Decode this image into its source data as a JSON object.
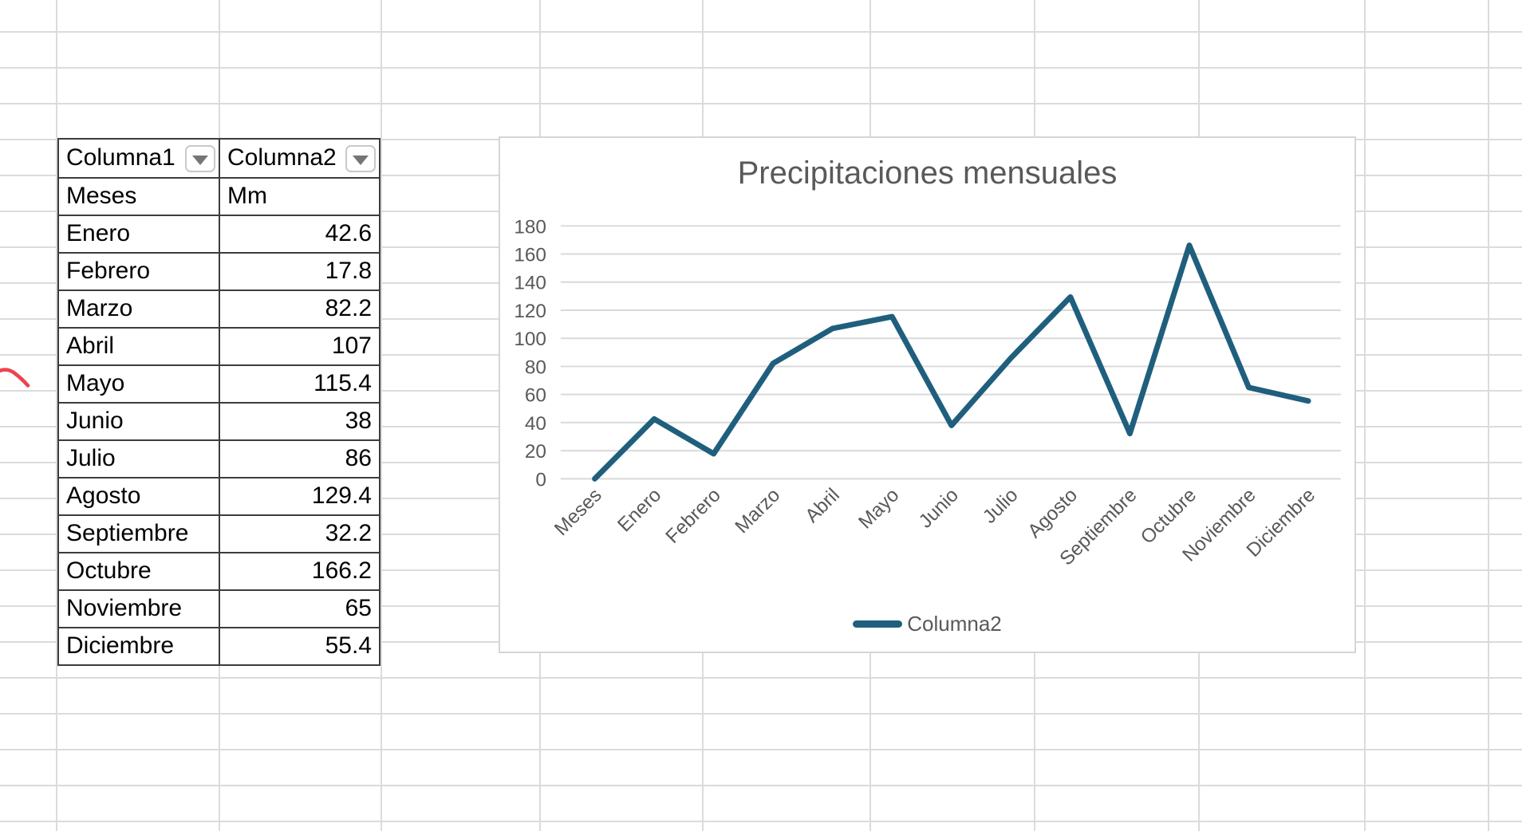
{
  "table": {
    "headers": [
      "Columna1",
      "Columna2"
    ],
    "subheader": [
      "Meses",
      "Mm"
    ],
    "rows": [
      {
        "month": "Enero",
        "value": "42.6"
      },
      {
        "month": "Febrero",
        "value": "17.8"
      },
      {
        "month": "Marzo",
        "value": "82.2"
      },
      {
        "month": "Abril",
        "value": "107"
      },
      {
        "month": "Mayo",
        "value": "115.4"
      },
      {
        "month": "Junio",
        "value": "38"
      },
      {
        "month": "Julio",
        "value": "86"
      },
      {
        "month": "Agosto",
        "value": "129.4"
      },
      {
        "month": "Septiembre",
        "value": "32.2"
      },
      {
        "month": "Octubre",
        "value": "166.2"
      },
      {
        "month": "Noviembre",
        "value": "65"
      },
      {
        "month": "Diciembre",
        "value": "55.4"
      }
    ],
    "filter_icon": "dropdown-arrow"
  },
  "chart_data": {
    "type": "line",
    "title": "Precipitaciones mensuales",
    "categories": [
      "Meses",
      "Enero",
      "Febrero",
      "Marzo",
      "Abril",
      "Mayo",
      "Junio",
      "Julio",
      "Agosto",
      "Septiembre",
      "Octubre",
      "Noviembre",
      "Diciembre"
    ],
    "series": [
      {
        "name": "Columna2",
        "values": [
          0,
          42.6,
          17.8,
          82.2,
          107,
          115.4,
          38,
          86,
          129.4,
          32.2,
          166.2,
          65,
          55.4
        ]
      }
    ],
    "xlabel": "",
    "ylabel": "",
    "ylim": [
      0,
      180
    ],
    "ytick_step": 20,
    "yticks": [
      0,
      20,
      40,
      60,
      80,
      100,
      120,
      140,
      160,
      180
    ],
    "grid": true,
    "legend_position": "bottom",
    "x_label_rotation_deg": -45,
    "line_color": "#1F5F7D",
    "text_color": "#595959",
    "gridline_color": "#D9D9D9"
  },
  "annotations": {
    "red_ink_color": "#ED4350"
  }
}
